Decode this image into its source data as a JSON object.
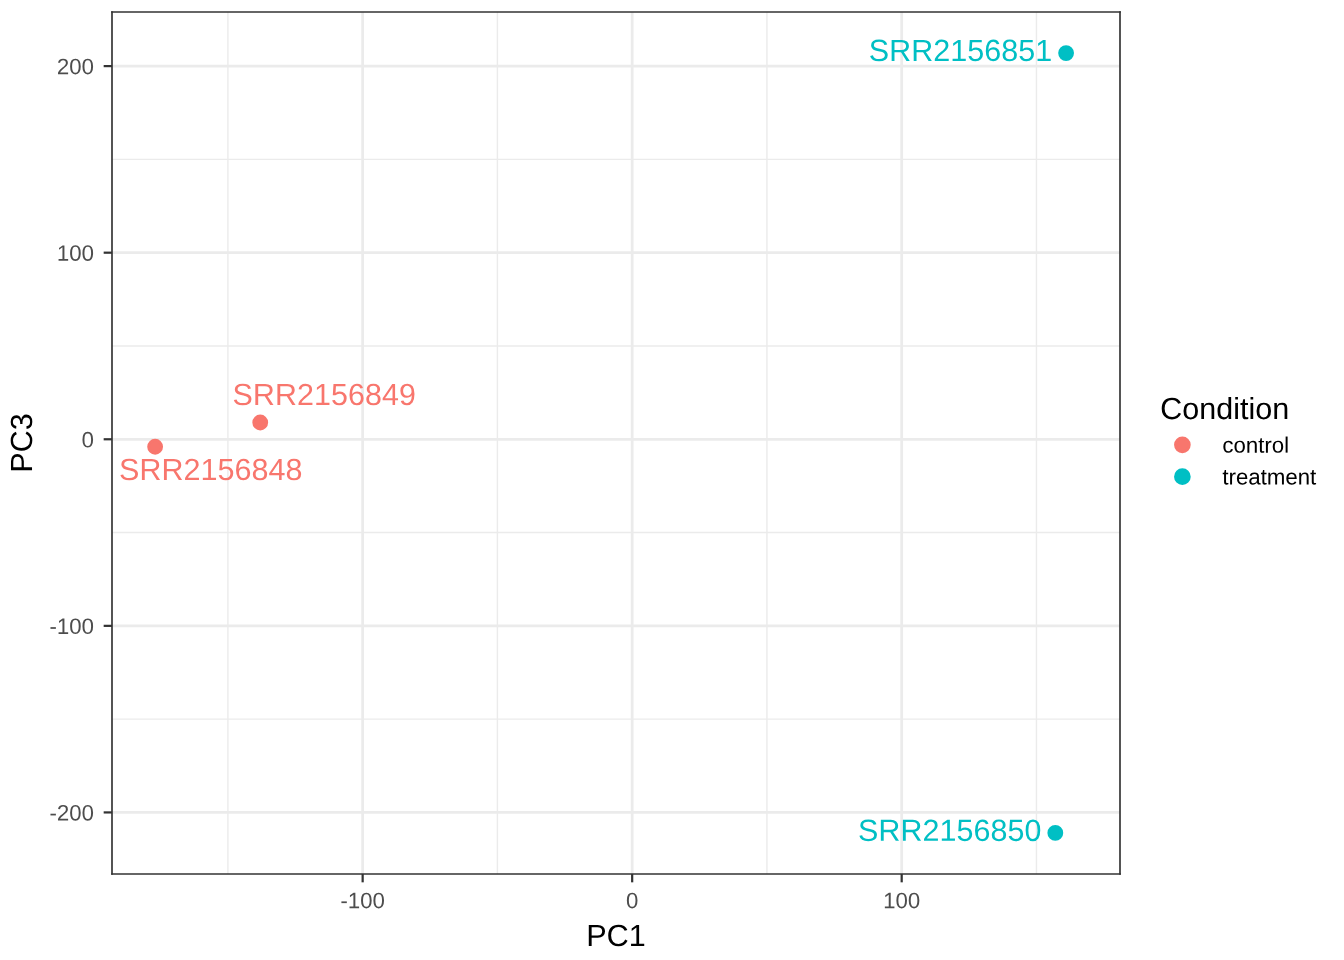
{
  "chart_data": {
    "type": "scatter",
    "xlabel": "PC1",
    "ylabel": "PC3",
    "legend_title": "Condition",
    "legend": "right",
    "grid": true,
    "marker": "circle",
    "xlim": [
      -193,
      181
    ],
    "ylim": [
      -233,
      229
    ],
    "xticks": [
      {
        "value": -150,
        "label": null
      },
      -100,
      {
        "value": -50,
        "label": null
      },
      0,
      {
        "value": 50,
        "label": null
      },
      100,
      {
        "value": 150,
        "label": null
      }
    ],
    "yticks": [
      -200,
      {
        "value": -150,
        "label": null
      },
      -100,
      {
        "value": -50,
        "label": null
      },
      0,
      {
        "value": 50,
        "label": null
      },
      100,
      {
        "value": 150,
        "label": null
      },
      200
    ],
    "series": [
      {
        "name": "control",
        "color": "#f8766d",
        "x": [
          -177,
          -138
        ],
        "values": [
          -4,
          9
        ],
        "value_labels": [
          "SRR2156848",
          "SRR2156849"
        ]
      },
      {
        "name": "treatment",
        "color": "#00bfc4",
        "x": [
          157,
          161
        ],
        "values": [
          -211,
          207
        ],
        "value_labels": [
          "SRR2156850",
          "SRR2156851"
        ]
      }
    ]
  }
}
